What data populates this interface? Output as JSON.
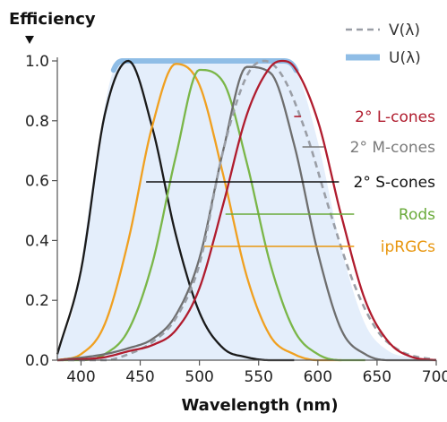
{
  "chart_data": {
    "type": "line",
    "xlabel": "Wavelength (nm)",
    "ylabel": "Efficiency",
    "xlim": [
      380,
      700
    ],
    "ylim": [
      0,
      1.0
    ],
    "x_ticks": [
      400,
      450,
      500,
      550,
      600,
      650,
      700
    ],
    "y_ticks": [
      "0.0",
      "0.2",
      "0.4",
      "0.6",
      "0.8",
      "1.0"
    ],
    "grid": false,
    "legend_position": "top-right",
    "legend": [
      {
        "label": "V(λ)",
        "style": "dashed",
        "color": "#9a9ea6"
      },
      {
        "label": "U(λ)",
        "style": "band",
        "color": "#8fbde6"
      }
    ],
    "envelope": {
      "name": "U(λ)",
      "x": [
        380,
        395,
        410,
        425,
        435,
        440,
        570,
        580,
        600,
        620,
        640,
        660,
        680,
        700
      ],
      "y": [
        0.02,
        0.2,
        0.6,
        0.94,
        1.0,
        1.0,
        1.0,
        0.98,
        0.73,
        0.37,
        0.12,
        0.03,
        0.01,
        0.0
      ],
      "fill": "#e4eefb",
      "top_color": "#8fbde6"
    },
    "series": [
      {
        "name": "2° S-cones",
        "color": "#1a1a1a",
        "peak": 440,
        "x": [
          380,
          400,
          420,
          440,
          460,
          480,
          500,
          520,
          540,
          560,
          580
        ],
        "y": [
          0.02,
          0.3,
          0.82,
          1.0,
          0.78,
          0.42,
          0.16,
          0.04,
          0.01,
          0.0,
          0.0
        ]
      },
      {
        "name": "ipRGCs",
        "color": "#f0a020",
        "peak": 485,
        "x": [
          380,
          400,
          420,
          440,
          460,
          480,
          500,
          520,
          540,
          560,
          580,
          600,
          620
        ],
        "y": [
          0.0,
          0.02,
          0.12,
          0.4,
          0.78,
          0.99,
          0.92,
          0.62,
          0.28,
          0.08,
          0.02,
          0.0,
          0.0
        ]
      },
      {
        "name": "Rods",
        "color": "#7ab648",
        "peak": 507,
        "x": [
          380,
          400,
          420,
          440,
          460,
          480,
          500,
          520,
          540,
          560,
          580,
          600,
          620,
          640
        ],
        "y": [
          0.0,
          0.0,
          0.02,
          0.1,
          0.32,
          0.68,
          0.97,
          0.93,
          0.66,
          0.32,
          0.1,
          0.02,
          0.0,
          0.0
        ]
      },
      {
        "name": "2° M-cones",
        "color": "#6e6e6e",
        "peak": 545,
        "x": [
          380,
          420,
          440,
          460,
          480,
          500,
          520,
          540,
          560,
          580,
          600,
          620,
          640,
          660,
          680,
          700
        ],
        "y": [
          0.0,
          0.02,
          0.04,
          0.07,
          0.15,
          0.34,
          0.7,
          0.98,
          0.96,
          0.72,
          0.36,
          0.1,
          0.02,
          0.0,
          0.0,
          0.0
        ]
      },
      {
        "name": "V(λ)",
        "color": "#9a9ea6",
        "dashed": true,
        "peak": 555,
        "x": [
          380,
          420,
          440,
          460,
          480,
          500,
          520,
          540,
          555,
          570,
          590,
          610,
          630,
          650,
          670,
          700
        ],
        "y": [
          0.0,
          0.0,
          0.02,
          0.06,
          0.14,
          0.32,
          0.7,
          0.95,
          1.0,
          0.95,
          0.76,
          0.5,
          0.26,
          0.1,
          0.03,
          0.0
        ]
      },
      {
        "name": "2° L-cones",
        "color": "#b01c2e",
        "peak": 567,
        "x": [
          380,
          420,
          440,
          460,
          480,
          500,
          520,
          540,
          560,
          570,
          580,
          600,
          620,
          640,
          660,
          680,
          700
        ],
        "y": [
          0.0,
          0.01,
          0.03,
          0.05,
          0.1,
          0.24,
          0.52,
          0.82,
          0.98,
          1.0,
          0.98,
          0.8,
          0.48,
          0.2,
          0.06,
          0.01,
          0.0
        ]
      }
    ],
    "annotations": [
      {
        "text": "2° L-cones",
        "color": "#b01c2e",
        "series": "2° L-cones"
      },
      {
        "text": "2° M-cones",
        "color": "#7a7a7a",
        "series": "2° M-cones"
      },
      {
        "text": "2° S-cones",
        "color": "#111111",
        "series": "2° S-cones"
      },
      {
        "text": "Rods",
        "color": "#6aaa3a",
        "series": "Rods"
      },
      {
        "text": "ipRGCs",
        "color": "#e8960e",
        "series": "ipRGCs"
      }
    ]
  }
}
